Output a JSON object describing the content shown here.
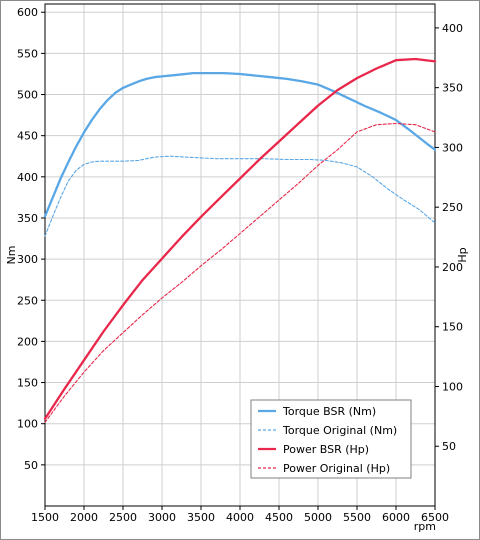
{
  "chart_data": {
    "type": "line",
    "xlabel": "rpm",
    "ylabel_left": "Nm",
    "ylabel_right": "Hp",
    "xlim": [
      1500,
      6500
    ],
    "ylim_left": [
      0,
      610
    ],
    "ylim_right": [
      0,
      420
    ],
    "x_ticks": [
      1500,
      2000,
      2500,
      3000,
      3500,
      4000,
      4500,
      5000,
      5500,
      6000,
      6500
    ],
    "y_left_ticks": [
      50,
      100,
      150,
      200,
      250,
      300,
      350,
      400,
      450,
      500,
      550,
      600
    ],
    "y_right_ticks": [
      50,
      100,
      150,
      200,
      250,
      300,
      350,
      400
    ],
    "grid": true,
    "legend_position": "bottom-right",
    "series": [
      {
        "name": "Torque BSR (Nm)",
        "axis": "left",
        "style": "solid",
        "color": "#5aa7e6",
        "x": [
          1500,
          1600,
          1700,
          1800,
          1900,
          2000,
          2100,
          2200,
          2300,
          2400,
          2500,
          2600,
          2700,
          2800,
          2900,
          3000,
          3200,
          3400,
          3600,
          3800,
          4000,
          4200,
          4400,
          4600,
          4800,
          5000,
          5200,
          5400,
          5600,
          5800,
          6000,
          6200,
          6400,
          6500
        ],
        "y": [
          352,
          375,
          398,
          418,
          437,
          454,
          469,
          482,
          493,
          502,
          508,
          512,
          516,
          519,
          521,
          522,
          524,
          526,
          526,
          526,
          525,
          523,
          521,
          519,
          516,
          512,
          504,
          495,
          486,
          478,
          469,
          455,
          440,
          433
        ]
      },
      {
        "name": "Torque Original (Nm)",
        "axis": "left",
        "style": "dashed",
        "color": "#5aa7e6",
        "x": [
          1500,
          1600,
          1700,
          1800,
          1900,
          2000,
          2100,
          2200,
          2300,
          2400,
          2500,
          2700,
          2900,
          3100,
          3300,
          3500,
          3700,
          4000,
          4300,
          4600,
          4900,
          5100,
          5300,
          5500,
          5700,
          5900,
          6100,
          6300,
          6500
        ],
        "y": [
          328,
          352,
          375,
          395,
          408,
          415,
          418,
          419,
          419,
          419,
          419,
          420,
          424,
          425,
          424,
          423,
          422,
          422,
          422,
          421,
          421,
          420,
          417,
          412,
          400,
          385,
          372,
          360,
          344
        ]
      },
      {
        "name": "Power BSR (Hp)",
        "axis": "right",
        "style": "solid",
        "color": "#e8274a",
        "x": [
          1500,
          1750,
          2000,
          2250,
          2500,
          2750,
          3000,
          3250,
          3500,
          3750,
          4000,
          4250,
          4500,
          4750,
          5000,
          5250,
          5500,
          5750,
          6000,
          6250,
          6500
        ],
        "y": [
          73,
          98,
          122,
          146,
          168,
          189,
          207,
          225,
          242,
          258,
          274,
          290,
          305,
          320,
          335,
          348,
          358,
          366,
          373,
          374,
          372
        ]
      },
      {
        "name": "Power Original (Hp)",
        "axis": "right",
        "style": "dashed",
        "color": "#e8274a",
        "x": [
          1500,
          1750,
          2000,
          2250,
          2500,
          2750,
          3000,
          3250,
          3500,
          3750,
          4000,
          4250,
          4500,
          4750,
          5000,
          5250,
          5500,
          5750,
          6000,
          6250,
          6500
        ],
        "y": [
          70,
          92,
          112,
          130,
          145,
          160,
          174,
          187,
          201,
          214,
          228,
          242,
          256,
          270,
          285,
          298,
          313,
          319,
          320,
          319,
          313
        ]
      }
    ]
  }
}
